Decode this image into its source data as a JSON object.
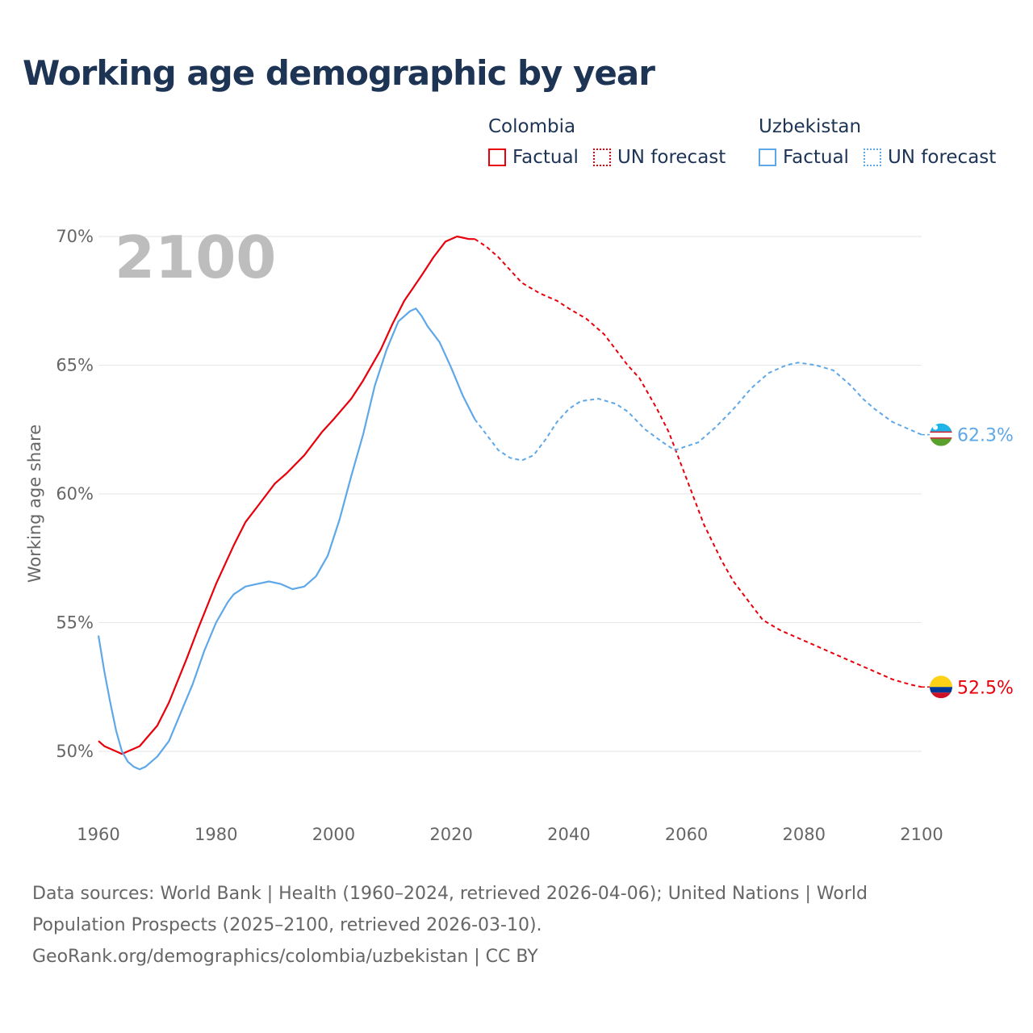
{
  "title": "Working age demographic by year",
  "legend": [
    {
      "country": "Colombia",
      "factual_label": "Factual",
      "forecast_label": "UN forecast",
      "color": "#e8000b"
    },
    {
      "country": "Uzbekistan",
      "factual_label": "Factual",
      "forecast_label": "UN forecast",
      "color": "#5fa8e8"
    }
  ],
  "year_watermark": "2100",
  "footer": {
    "line1": "Data sources: World Bank | Health (1960–2024, retrieved 2026-04-06); United Nations | World",
    "line2": "Population Prospects (2025–2100, retrieved 2026-03-10).",
    "line3": "GeoRank.org/demographics/colombia/uzbekistan | CC BY"
  },
  "chart_data": {
    "type": "line",
    "title": "Working age demographic by year",
    "xlabel": "",
    "ylabel": "Working age share",
    "xlim": [
      1960,
      2100
    ],
    "ylim": [
      48,
      70.5
    ],
    "x_ticks": [
      1960,
      1980,
      2000,
      2020,
      2040,
      2060,
      2080,
      2100
    ],
    "x_tick_labels": [
      "1960",
      "1980",
      "2000",
      "2020",
      "2040",
      "2060",
      "2080",
      "2100"
    ],
    "y_ticks": [
      50,
      55,
      60,
      65,
      70
    ],
    "y_tick_labels": [
      "50%",
      "55%",
      "60%",
      "65%",
      "70%"
    ],
    "grid": true,
    "forecast_start_year": 2024,
    "series": [
      {
        "name": "Colombia",
        "color": "#e8000b",
        "end_label": "52.5%",
        "points": [
          [
            1960,
            50.4
          ],
          [
            1961,
            50.2
          ],
          [
            1963,
            50.0
          ],
          [
            1964,
            49.9
          ],
          [
            1965,
            50.0
          ],
          [
            1967,
            50.2
          ],
          [
            1970,
            51.0
          ],
          [
            1972,
            51.9
          ],
          [
            1975,
            53.6
          ],
          [
            1977,
            54.8
          ],
          [
            1980,
            56.5
          ],
          [
            1983,
            58.0
          ],
          [
            1985,
            58.9
          ],
          [
            1987,
            59.5
          ],
          [
            1990,
            60.4
          ],
          [
            1992,
            60.8
          ],
          [
            1995,
            61.5
          ],
          [
            1998,
            62.4
          ],
          [
            2000,
            62.9
          ],
          [
            2003,
            63.7
          ],
          [
            2005,
            64.4
          ],
          [
            2008,
            65.6
          ],
          [
            2010,
            66.6
          ],
          [
            2012,
            67.5
          ],
          [
            2015,
            68.5
          ],
          [
            2017,
            69.2
          ],
          [
            2019,
            69.8
          ],
          [
            2021,
            70.0
          ],
          [
            2023,
            69.9
          ],
          [
            2024,
            69.9
          ],
          [
            2026,
            69.6
          ],
          [
            2028,
            69.2
          ],
          [
            2030,
            68.7
          ],
          [
            2032,
            68.2
          ],
          [
            2035,
            67.8
          ],
          [
            2038,
            67.5
          ],
          [
            2040,
            67.2
          ],
          [
            2043,
            66.8
          ],
          [
            2046,
            66.2
          ],
          [
            2050,
            65.0
          ],
          [
            2052,
            64.5
          ],
          [
            2055,
            63.3
          ],
          [
            2057,
            62.4
          ],
          [
            2060,
            60.6
          ],
          [
            2063,
            58.8
          ],
          [
            2066,
            57.4
          ],
          [
            2068,
            56.6
          ],
          [
            2071,
            55.7
          ],
          [
            2073,
            55.1
          ],
          [
            2076,
            54.7
          ],
          [
            2080,
            54.3
          ],
          [
            2085,
            53.8
          ],
          [
            2090,
            53.3
          ],
          [
            2095,
            52.8
          ],
          [
            2098,
            52.6
          ],
          [
            2100,
            52.5
          ]
        ]
      },
      {
        "name": "Uzbekistan",
        "color": "#5fa8e8",
        "end_label": "62.3%",
        "points": [
          [
            1960,
            54.5
          ],
          [
            1961,
            53.1
          ],
          [
            1962,
            51.9
          ],
          [
            1963,
            50.8
          ],
          [
            1964,
            50.0
          ],
          [
            1965,
            49.6
          ],
          [
            1966,
            49.4
          ],
          [
            1967,
            49.3
          ],
          [
            1968,
            49.4
          ],
          [
            1970,
            49.8
          ],
          [
            1972,
            50.4
          ],
          [
            1974,
            51.5
          ],
          [
            1976,
            52.6
          ],
          [
            1978,
            53.9
          ],
          [
            1980,
            55.0
          ],
          [
            1982,
            55.8
          ],
          [
            1983,
            56.1
          ],
          [
            1985,
            56.4
          ],
          [
            1987,
            56.5
          ],
          [
            1989,
            56.6
          ],
          [
            1991,
            56.5
          ],
          [
            1993,
            56.3
          ],
          [
            1995,
            56.4
          ],
          [
            1997,
            56.8
          ],
          [
            1999,
            57.6
          ],
          [
            2001,
            59.0
          ],
          [
            2003,
            60.7
          ],
          [
            2005,
            62.3
          ],
          [
            2007,
            64.2
          ],
          [
            2009,
            65.6
          ],
          [
            2011,
            66.7
          ],
          [
            2013,
            67.1
          ],
          [
            2014,
            67.2
          ],
          [
            2015,
            66.9
          ],
          [
            2016,
            66.5
          ],
          [
            2018,
            65.9
          ],
          [
            2020,
            64.9
          ],
          [
            2022,
            63.8
          ],
          [
            2024,
            62.9
          ],
          [
            2026,
            62.3
          ],
          [
            2028,
            61.7
          ],
          [
            2030,
            61.4
          ],
          [
            2032,
            61.3
          ],
          [
            2034,
            61.5
          ],
          [
            2036,
            62.1
          ],
          [
            2038,
            62.8
          ],
          [
            2040,
            63.3
          ],
          [
            2042,
            63.6
          ],
          [
            2045,
            63.7
          ],
          [
            2048,
            63.5
          ],
          [
            2050,
            63.2
          ],
          [
            2053,
            62.5
          ],
          [
            2056,
            62.0
          ],
          [
            2058,
            61.7
          ],
          [
            2062,
            62.0
          ],
          [
            2065,
            62.6
          ],
          [
            2068,
            63.3
          ],
          [
            2071,
            64.1
          ],
          [
            2074,
            64.7
          ],
          [
            2077,
            65.0
          ],
          [
            2079,
            65.1
          ],
          [
            2082,
            65.0
          ],
          [
            2085,
            64.8
          ],
          [
            2088,
            64.2
          ],
          [
            2090,
            63.7
          ],
          [
            2092,
            63.3
          ],
          [
            2095,
            62.8
          ],
          [
            2098,
            62.5
          ],
          [
            2100,
            62.3
          ]
        ]
      }
    ]
  }
}
